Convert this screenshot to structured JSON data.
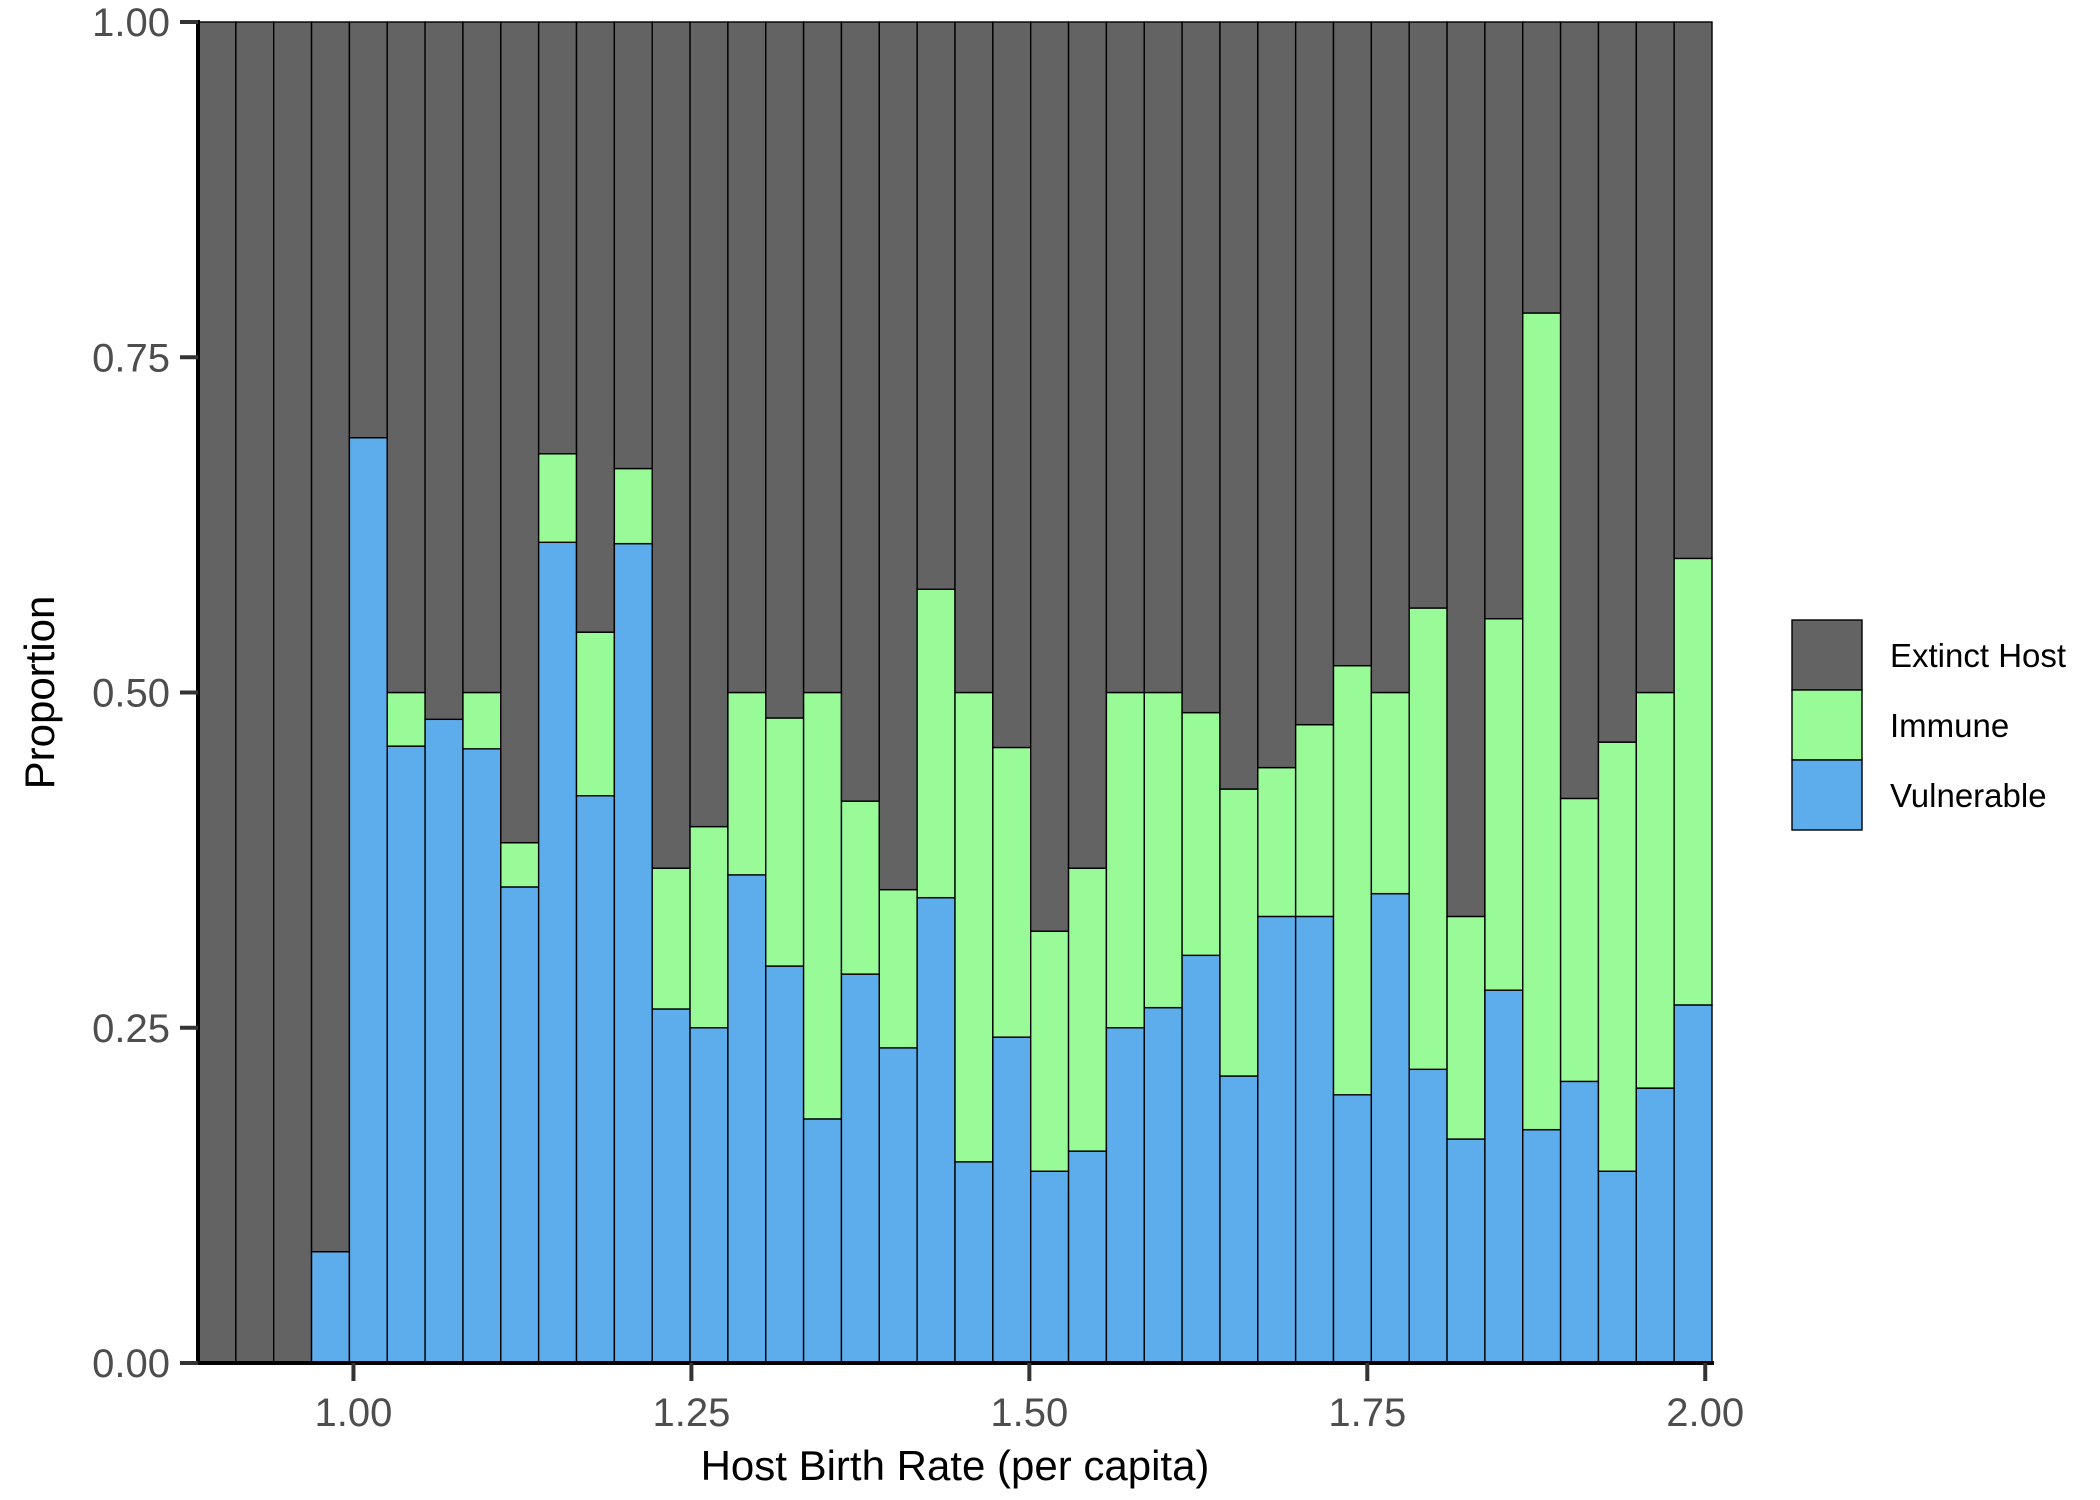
{
  "chart_data": {
    "type": "bar",
    "stacked": true,
    "xlabel": "Host Birth Rate (per capita)",
    "ylabel": "Proportion",
    "xlim": [
      0.885,
      2.005
    ],
    "ylim": [
      0,
      1
    ],
    "bin_width": 0.028,
    "x_ticks": [
      1.0,
      1.25,
      1.5,
      1.75,
      2.0
    ],
    "x_tick_labels": [
      "1.00",
      "1.25",
      "1.50",
      "1.75",
      "2.00"
    ],
    "y_ticks": [
      0,
      0.25,
      0.5,
      0.75,
      1.0
    ],
    "y_tick_labels": [
      "0.00",
      "0.25",
      "0.50",
      "0.75",
      "1.00"
    ],
    "grid": false,
    "legend_position": "right",
    "x": [
      0.899,
      0.927,
      0.955,
      0.983,
      1.011,
      1.039,
      1.067,
      1.095,
      1.123,
      1.151,
      1.179,
      1.207,
      1.235,
      1.263,
      1.291,
      1.319,
      1.347,
      1.375,
      1.403,
      1.431,
      1.459,
      1.487,
      1.515,
      1.543,
      1.571,
      1.599,
      1.627,
      1.655,
      1.683,
      1.711,
      1.739,
      1.767,
      1.795,
      1.823,
      1.851,
      1.879,
      1.907,
      1.935,
      1.963,
      1.991
    ],
    "series": [
      {
        "name": "Vulnerable",
        "color": "#5DADEC",
        "values": [
          0,
          0,
          0,
          0.083,
          0.69,
          0.46,
          0.48,
          0.458,
          0.355,
          0.612,
          0.423,
          0.611,
          0.264,
          0.25,
          0.364,
          0.296,
          0.182,
          0.29,
          0.235,
          0.347,
          0.15,
          0.243,
          0.143,
          0.158,
          0.25,
          0.265,
          0.304,
          0.214,
          0.333,
          0.333,
          0.2,
          0.35,
          0.219,
          0.167,
          0.278,
          0.174,
          0.21,
          0.143,
          0.205,
          0.267
        ]
      },
      {
        "name": "Immune",
        "color": "#98FB98",
        "values": [
          0,
          0,
          0,
          0,
          0,
          0.04,
          0,
          0.042,
          0.033,
          0.066,
          0.122,
          0.056,
          0.105,
          0.15,
          0.136,
          0.185,
          0.318,
          0.129,
          0.118,
          0.23,
          0.35,
          0.216,
          0.179,
          0.211,
          0.25,
          0.235,
          0.181,
          0.214,
          0.111,
          0.143,
          0.32,
          0.15,
          0.344,
          0.166,
          0.277,
          0.609,
          0.211,
          0.32,
          0.295,
          0.333
        ]
      },
      {
        "name": "Extinct Host",
        "color": "#636363",
        "values": [
          1,
          1,
          1,
          0.917,
          0.31,
          0.5,
          0.52,
          0.5,
          0.612,
          0.322,
          0.455,
          0.333,
          0.631,
          0.6,
          0.5,
          0.519,
          0.5,
          0.581,
          0.647,
          0.423,
          0.5,
          0.541,
          0.678,
          0.631,
          0.5,
          0.5,
          0.515,
          0.572,
          0.556,
          0.524,
          0.48,
          0.5,
          0.437,
          0.667,
          0.445,
          0.217,
          0.579,
          0.537,
          0.5,
          0.4
        ]
      }
    ],
    "legend": [
      {
        "name": "Extinct Host",
        "color": "#636363"
      },
      {
        "name": "Immune",
        "color": "#98FB98"
      },
      {
        "name": "Vulnerable",
        "color": "#5DADEC"
      }
    ]
  }
}
